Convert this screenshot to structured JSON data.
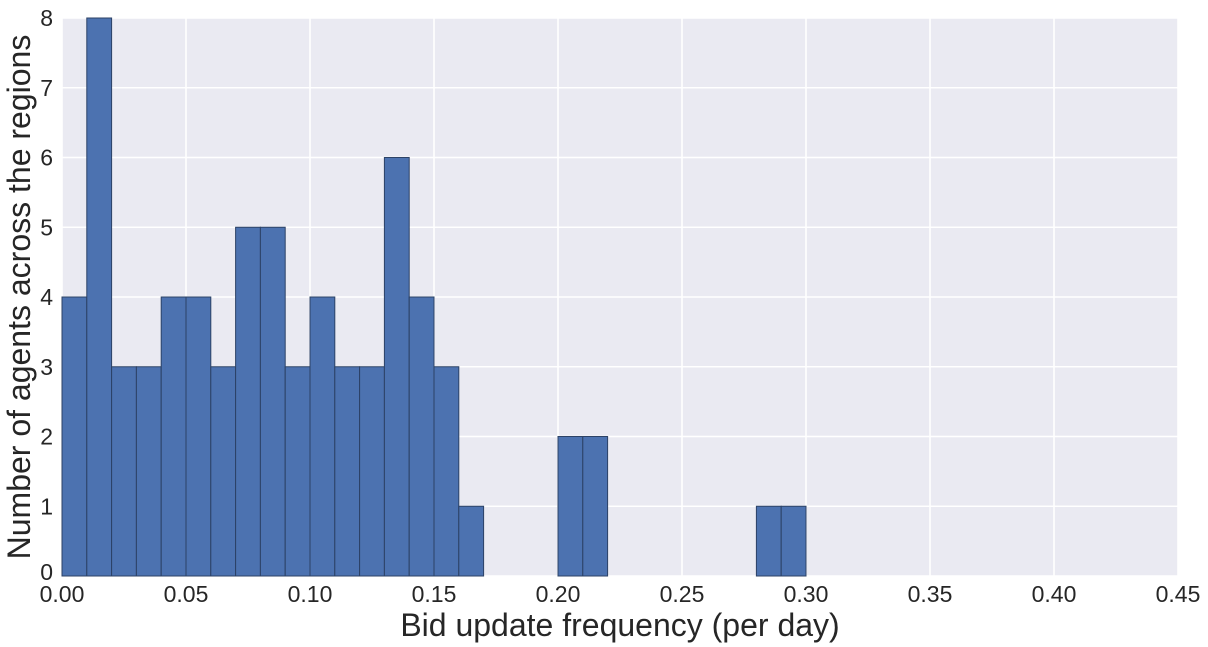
{
  "chart_data": {
    "type": "bar",
    "title": "",
    "xlabel": "Bid update frequency (per day)",
    "ylabel": "Number of agents across the regions",
    "xlim": [
      0,
      0.45
    ],
    "ylim": [
      0,
      8
    ],
    "grid": true,
    "bar_color": "#4c72b0",
    "bar_edge_color": "#2c4266",
    "plot_background": "#eaeaf2",
    "grid_color": "#ffffff",
    "xticks": [
      "0.00",
      "0.05",
      "0.10",
      "0.15",
      "0.20",
      "0.25",
      "0.30",
      "0.35",
      "0.40",
      "0.45"
    ],
    "xtick_values": [
      0,
      0.05,
      0.1,
      0.15,
      0.2,
      0.25,
      0.3,
      0.35,
      0.4,
      0.45
    ],
    "yticks": [
      "0",
      "1",
      "2",
      "3",
      "4",
      "5",
      "6",
      "7",
      "8"
    ],
    "ytick_values": [
      0,
      1,
      2,
      3,
      4,
      5,
      6,
      7,
      8
    ],
    "bins": [
      {
        "x0": 0.0,
        "x1": 0.01,
        "count": 4
      },
      {
        "x0": 0.01,
        "x1": 0.02,
        "count": 8
      },
      {
        "x0": 0.02,
        "x1": 0.03,
        "count": 3
      },
      {
        "x0": 0.03,
        "x1": 0.04,
        "count": 3
      },
      {
        "x0": 0.04,
        "x1": 0.05,
        "count": 4
      },
      {
        "x0": 0.05,
        "x1": 0.06,
        "count": 4
      },
      {
        "x0": 0.06,
        "x1": 0.07,
        "count": 3
      },
      {
        "x0": 0.07,
        "x1": 0.08,
        "count": 5
      },
      {
        "x0": 0.08,
        "x1": 0.09,
        "count": 5
      },
      {
        "x0": 0.09,
        "x1": 0.1,
        "count": 3
      },
      {
        "x0": 0.1,
        "x1": 0.11,
        "count": 4
      },
      {
        "x0": 0.11,
        "x1": 0.12,
        "count": 3
      },
      {
        "x0": 0.12,
        "x1": 0.13,
        "count": 3
      },
      {
        "x0": 0.13,
        "x1": 0.14,
        "count": 6
      },
      {
        "x0": 0.14,
        "x1": 0.15,
        "count": 4
      },
      {
        "x0": 0.15,
        "x1": 0.16,
        "count": 3
      },
      {
        "x0": 0.16,
        "x1": 0.17,
        "count": 1
      },
      {
        "x0": 0.2,
        "x1": 0.21,
        "count": 2
      },
      {
        "x0": 0.21,
        "x1": 0.22,
        "count": 2
      },
      {
        "x0": 0.28,
        "x1": 0.29,
        "count": 1
      },
      {
        "x0": 0.29,
        "x1": 0.3,
        "count": 1
      }
    ]
  }
}
